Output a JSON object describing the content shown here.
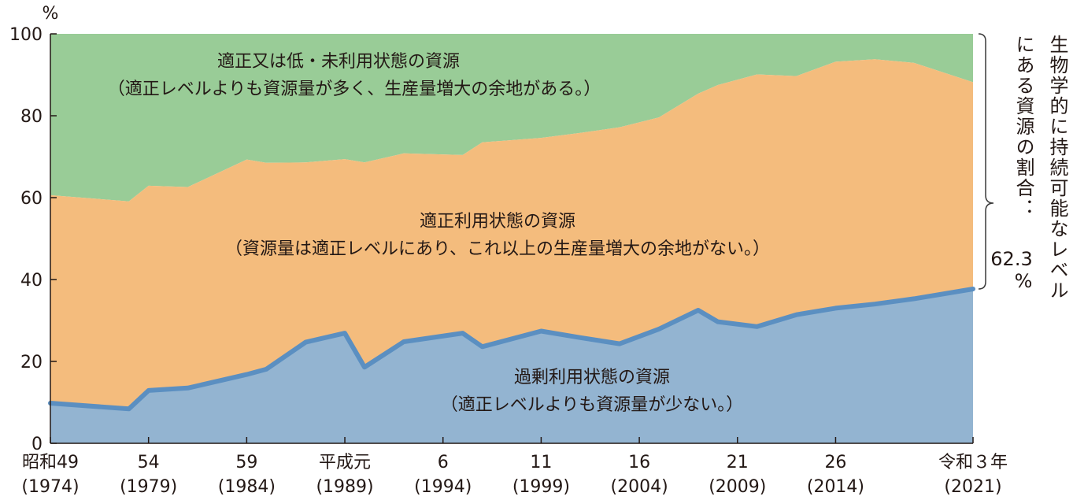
{
  "chart_data": {
    "type": "area",
    "y_unit": "%",
    "ylim": [
      0,
      100
    ],
    "yticks": [
      0,
      20,
      40,
      60,
      80,
      100
    ],
    "xlim": [
      1974,
      2021
    ],
    "x_tick_labels": [
      {
        "year": 1974,
        "era": "昭和49",
        "western": "(1974)"
      },
      {
        "year": 1979,
        "era": "54",
        "western": "(1979)"
      },
      {
        "year": 1984,
        "era": "59",
        "western": "(1984)"
      },
      {
        "year": 1989,
        "era": "平成元",
        "western": "(1989)"
      },
      {
        "year": 1994,
        "era": "6",
        "western": "(1994)"
      },
      {
        "year": 1999,
        "era": "11",
        "western": "(1999)"
      },
      {
        "year": 2004,
        "era": "16",
        "western": "(2004)"
      },
      {
        "year": 2009,
        "era": "21",
        "western": "(2009)"
      },
      {
        "year": 2014,
        "era": "26",
        "western": "(2014)"
      },
      {
        "year": 2021,
        "era": "令和３年",
        "western": "(2021)"
      }
    ],
    "x": [
      1974,
      1978,
      1979,
      1981,
      1984,
      1985,
      1987,
      1989,
      1990,
      1992,
      1995,
      1996,
      1999,
      2001,
      2003,
      2005,
      2007,
      2008,
      2010,
      2012,
      2014,
      2016,
      2018,
      2021
    ],
    "series": [
      {
        "name": "過剰利用状態の資源",
        "sub": "（適正レベルよりも資源量が少ない。）",
        "color": "#93b4d1",
        "line_color": "#5b8fc1",
        "values": [
          9.8,
          8.4,
          12.9,
          13.5,
          16.8,
          18.1,
          24.7,
          26.9,
          18.6,
          24.8,
          26.9,
          23.6,
          27.4,
          25.8,
          24.3,
          27.9,
          32.5,
          29.7,
          28.5,
          31.4,
          33.0,
          34.0,
          35.3,
          37.7
        ]
      },
      {
        "name": "適正利用状態の資源",
        "sub": "（資源量は適正レベルにあり、これ以上の生産量増大の余地がない。）",
        "color": "#f4bc7d",
        "values": [
          60.6,
          59.1,
          62.9,
          62.6,
          69.3,
          68.5,
          68.6,
          69.4,
          68.6,
          70.8,
          70.4,
          73.5,
          74.6,
          75.8,
          77.2,
          79.6,
          85.4,
          87.5,
          90.1,
          89.7,
          93.2,
          93.8,
          92.9,
          88.2
        ]
      },
      {
        "name": "適正又は低・未利用状態の資源",
        "sub": "（適正レベルよりも資源量が多く、生産量増大の余地がある。）",
        "color": "#99cc97",
        "values": [
          100,
          100,
          100,
          100,
          100,
          100,
          100,
          100,
          100,
          100,
          100,
          100,
          100,
          100,
          100,
          100,
          100,
          100,
          100,
          100,
          100,
          100,
          100,
          100
        ]
      }
    ],
    "annotation": {
      "lines": [
        "生物学的に持続可能なレベル",
        "にある資源の割合："
      ],
      "value": "62.3",
      "unit": "%"
    }
  }
}
